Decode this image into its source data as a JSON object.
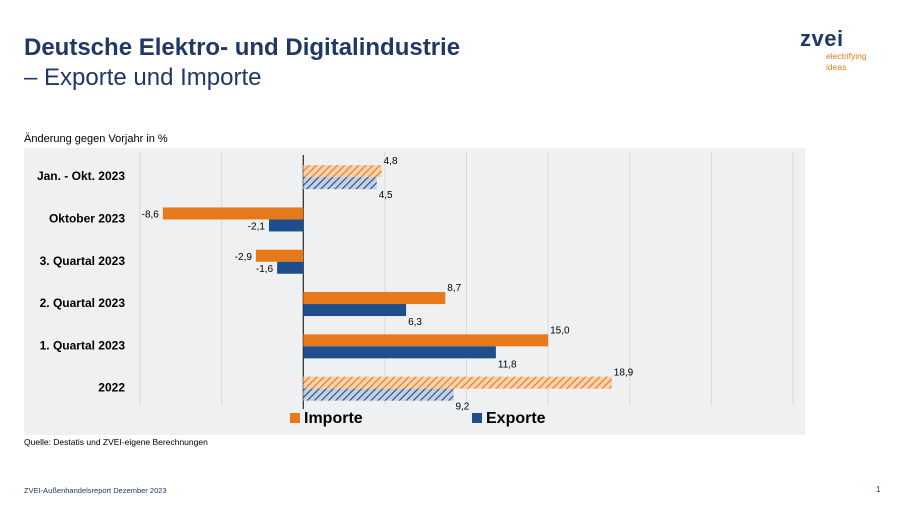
{
  "title_line1": "Deutsche Elektro- und Digitalindustrie",
  "title_line2": "– Exporte und Importe",
  "logo": {
    "word": "zvei",
    "tagline1": "electrifying",
    "tagline2": "ideas"
  },
  "chart_data": {
    "type": "bar",
    "orientation": "horizontal",
    "subtitle": "Änderung gegen Vorjahr in %",
    "categories": [
      "Jan. - Okt. 2023",
      "Oktober 2023",
      "3. Quartal 2023",
      "2. Quartal 2023",
      "1. Quartal 2023",
      "2022"
    ],
    "series": [
      {
        "name": "Importe",
        "color": "#e8791a",
        "values": [
          4.8,
          -8.6,
          -2.9,
          8.7,
          15.0,
          18.9
        ],
        "labels": [
          "4,8",
          "-8,6",
          "-2,9",
          "8,7",
          "15,0",
          "18,9"
        ]
      },
      {
        "name": "Exporte",
        "color": "#1f4e8c",
        "values": [
          4.5,
          -2.1,
          -1.6,
          6.3,
          11.8,
          9.2
        ],
        "labels": [
          "4,5",
          "-2,1",
          "-1,6",
          "6,3",
          "11,8",
          "9,2"
        ]
      }
    ],
    "hatched_categories": [
      "Jan. - Okt. 2023",
      "2022"
    ],
    "xlim": [
      -10,
      30
    ],
    "grid": true,
    "legend_position": "bottom"
  },
  "source_note": "Quelle: Destatis und ZVEI-eigene Berechnungen",
  "footer": "ZVEI-Außenhandelsreport Dezember 2023",
  "page_number": "1"
}
